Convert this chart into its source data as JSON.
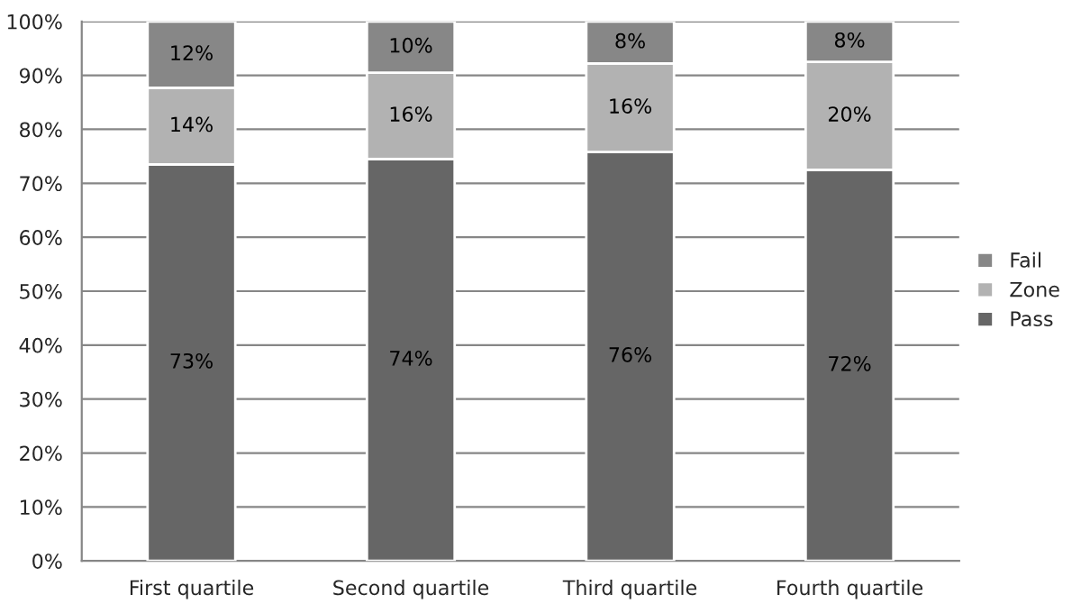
{
  "chart_data": {
    "type": "bar",
    "stacked": true,
    "categories": [
      "First quartile",
      "Second quartile",
      "Third quartile",
      "Fourth quartile"
    ],
    "series": [
      {
        "name": "Pass",
        "color": "#666666",
        "values": [
          73.5,
          74.5,
          75.8,
          72.5
        ],
        "value_labels": [
          "73%",
          "74%",
          "76%",
          "72%"
        ]
      },
      {
        "name": "Zone",
        "color": "#b2b2b2",
        "values": [
          14.2,
          16,
          16.4,
          20
        ],
        "value_labels": [
          "14%",
          "16%",
          "16%",
          "20%"
        ]
      },
      {
        "name": "Fail",
        "color": "#878787",
        "values": [
          12.3,
          9.5,
          7.8,
          7.5
        ],
        "value_labels": [
          "12%",
          "10%",
          "8%",
          "8%"
        ]
      }
    ],
    "ylim": [
      0,
      100
    ],
    "yticks": [
      {
        "value": 0,
        "label": "0%"
      },
      {
        "value": 10,
        "label": "10%"
      },
      {
        "value": 20,
        "label": "20%"
      },
      {
        "value": 30,
        "label": "30%"
      },
      {
        "value": 40,
        "label": "40%"
      },
      {
        "value": 50,
        "label": "50%"
      },
      {
        "value": 60,
        "label": "60%"
      },
      {
        "value": 70,
        "label": "70%"
      },
      {
        "value": 80,
        "label": "80%"
      },
      {
        "value": 90,
        "label": "90%"
      },
      {
        "value": 100,
        "label": "100%"
      }
    ],
    "grid": "y",
    "legend": "right"
  }
}
